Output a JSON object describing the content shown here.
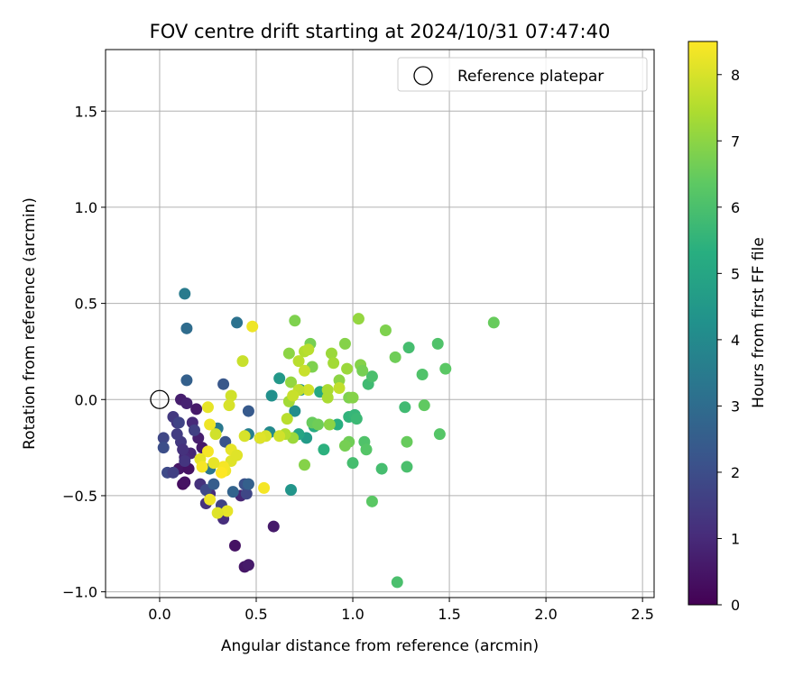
{
  "chart_data": {
    "type": "scatter",
    "title": "FOV centre drift starting at 2024/10/31 07:47:40",
    "xlabel": "Angular distance from reference (arcmin)",
    "ylabel": "Rotation from reference (arcmin)",
    "xlim": [
      -0.28,
      2.56
    ],
    "ylim": [
      -1.03,
      1.82
    ],
    "xticks": [
      0.0,
      0.5,
      1.0,
      1.5,
      2.0,
      2.5
    ],
    "xtick_labels": [
      "0.0",
      "0.5",
      "1.0",
      "1.5",
      "2.0",
      "2.5"
    ],
    "yticks": [
      -1.0,
      -0.5,
      0.0,
      0.5,
      1.0,
      1.5
    ],
    "ytick_labels": [
      "−1.0",
      "−0.5",
      "0.0",
      "0.5",
      "1.0",
      "1.5"
    ],
    "grid": true,
    "legend": {
      "position": "top-right",
      "label": "Reference platepar"
    },
    "reference_point": {
      "x": 0.0,
      "y": 0.0
    },
    "colorbar": {
      "label": "Hours from first FF file",
      "range": [
        0,
        8.5
      ],
      "ticks": [
        0,
        1,
        2,
        3,
        4,
        5,
        6,
        7,
        8
      ],
      "tick_labels": [
        "0",
        "1",
        "2",
        "3",
        "4",
        "5",
        "6",
        "7",
        "8"
      ],
      "colormap": "viridis"
    },
    "points": [
      [
        0.12,
        -0.44,
        0.3
      ],
      [
        0.13,
        -0.43,
        0.4
      ],
      [
        0.1,
        -0.36,
        0.5
      ],
      [
        0.15,
        -0.36,
        0.4
      ],
      [
        0.19,
        -0.05,
        0.6
      ],
      [
        0.11,
        0.0,
        0.7
      ],
      [
        0.14,
        -0.02,
        0.8
      ],
      [
        0.17,
        -0.12,
        1.0
      ],
      [
        0.2,
        -0.2,
        0.7
      ],
      [
        0.16,
        -0.28,
        0.9
      ],
      [
        0.22,
        -0.25,
        0.6
      ],
      [
        0.13,
        -0.3,
        1.0
      ],
      [
        0.33,
        -0.6,
        0.5
      ],
      [
        0.39,
        -0.76,
        0.4
      ],
      [
        0.44,
        -0.87,
        0.5
      ],
      [
        0.46,
        -0.86,
        0.6
      ],
      [
        0.59,
        -0.66,
        0.6
      ],
      [
        0.42,
        -0.5,
        0.9
      ],
      [
        0.26,
        -0.49,
        1.1
      ],
      [
        0.24,
        -0.54,
        1.2
      ],
      [
        0.33,
        -0.62,
        1.1
      ],
      [
        0.21,
        -0.44,
        1.2
      ],
      [
        0.09,
        -0.12,
        1.3
      ],
      [
        0.11,
        -0.22,
        1.4
      ],
      [
        0.13,
        -0.32,
        1.3
      ],
      [
        0.07,
        -0.09,
        1.4
      ],
      [
        0.09,
        -0.18,
        1.5
      ],
      [
        0.12,
        -0.26,
        1.2
      ],
      [
        0.18,
        -0.16,
        1.6
      ],
      [
        0.02,
        -0.2,
        1.8
      ],
      [
        0.04,
        -0.38,
        1.9
      ],
      [
        0.02,
        -0.25,
        2.0
      ],
      [
        0.1,
        -0.12,
        1.7
      ],
      [
        0.07,
        -0.38,
        1.6
      ],
      [
        0.24,
        -0.47,
        1.9
      ],
      [
        0.45,
        -0.49,
        1.8
      ],
      [
        0.32,
        -0.55,
        1.7
      ],
      [
        0.44,
        -0.44,
        2.1
      ],
      [
        0.34,
        -0.22,
        2.2
      ],
      [
        0.33,
        0.08,
        2.3
      ],
      [
        0.46,
        -0.06,
        2.4
      ],
      [
        0.28,
        -0.44,
        2.5
      ],
      [
        0.46,
        -0.44,
        2.6
      ],
      [
        0.38,
        -0.48,
        2.7
      ],
      [
        0.14,
        0.1,
        2.6
      ],
      [
        0.4,
        0.4,
        3.2
      ],
      [
        0.14,
        0.37,
        3.0
      ],
      [
        0.13,
        0.55,
        3.5
      ],
      [
        0.26,
        -0.36,
        3.3
      ],
      [
        0.3,
        -0.15,
        3.4
      ],
      [
        0.46,
        -0.18,
        3.6
      ],
      [
        0.52,
        -0.2,
        3.8
      ],
      [
        0.57,
        -0.17,
        4.0
      ],
      [
        0.58,
        0.02,
        4.2
      ],
      [
        0.62,
        0.11,
        4.5
      ],
      [
        0.68,
        -0.47,
        4.4
      ],
      [
        0.7,
        -0.06,
        4.1
      ],
      [
        0.73,
        0.05,
        4.3
      ],
      [
        0.76,
        -0.2,
        4.6
      ],
      [
        0.72,
        -0.18,
        5.0
      ],
      [
        0.8,
        -0.14,
        5.2
      ],
      [
        0.85,
        -0.26,
        5.4
      ],
      [
        0.83,
        0.04,
        5.1
      ],
      [
        0.92,
        -0.13,
        5.3
      ],
      [
        0.98,
        -0.09,
        5.5
      ],
      [
        1.01,
        -0.08,
        5.6
      ],
      [
        1.02,
        -0.1,
        5.7
      ],
      [
        1.08,
        0.08,
        5.8
      ],
      [
        1.1,
        0.12,
        6.0
      ],
      [
        1.0,
        -0.33,
        5.9
      ],
      [
        1.06,
        -0.22,
        6.1
      ],
      [
        1.07,
        -0.26,
        6.2
      ],
      [
        1.15,
        -0.36,
        5.9
      ],
      [
        1.1,
        -0.53,
        6.3
      ],
      [
        1.23,
        -0.95,
        6.0
      ],
      [
        1.27,
        -0.04,
        5.8
      ],
      [
        1.29,
        0.27,
        5.9
      ],
      [
        1.36,
        0.13,
        6.1
      ],
      [
        1.37,
        -0.03,
        6.4
      ],
      [
        1.28,
        -0.22,
        6.5
      ],
      [
        1.28,
        -0.35,
        6.0
      ],
      [
        1.45,
        -0.18,
        6.2
      ],
      [
        1.44,
        0.29,
        6.1
      ],
      [
        1.48,
        0.16,
        6.3
      ],
      [
        1.73,
        0.4,
        6.5
      ],
      [
        1.22,
        0.22,
        6.6
      ],
      [
        1.17,
        0.36,
        6.8
      ],
      [
        1.03,
        0.42,
        7.1
      ],
      [
        1.04,
        0.18,
        6.9
      ],
      [
        1.05,
        0.15,
        6.7
      ],
      [
        0.98,
        0.01,
        6.8
      ],
      [
        1.0,
        0.01,
        6.9
      ],
      [
        0.98,
        -0.22,
        6.6
      ],
      [
        0.96,
        -0.24,
        6.7
      ],
      [
        0.93,
        0.1,
        7.0
      ],
      [
        0.89,
        0.24,
        7.2
      ],
      [
        0.96,
        0.29,
        6.9
      ],
      [
        0.9,
        0.19,
        7.3
      ],
      [
        0.87,
        0.05,
        7.4
      ],
      [
        0.79,
        0.17,
        6.8
      ],
      [
        0.78,
        0.29,
        6.7
      ],
      [
        0.75,
        0.25,
        7.5
      ],
      [
        0.72,
        0.2,
        7.6
      ],
      [
        0.7,
        0.41,
        6.8
      ],
      [
        0.67,
        0.24,
        7.0
      ],
      [
        0.68,
        0.09,
        7.1
      ],
      [
        0.67,
        -0.01,
        7.3
      ],
      [
        0.69,
        -0.2,
        7.2
      ],
      [
        0.65,
        -0.18,
        7.5
      ],
      [
        0.66,
        -0.1,
        7.6
      ],
      [
        0.75,
        -0.34,
        6.9
      ],
      [
        0.79,
        -0.12,
        6.5
      ],
      [
        0.82,
        -0.13,
        6.6
      ],
      [
        0.88,
        -0.13,
        7.0
      ],
      [
        0.87,
        0.01,
        7.4
      ],
      [
        0.93,
        0.06,
        7.7
      ],
      [
        0.97,
        0.16,
        7.2
      ],
      [
        0.75,
        0.15,
        7.8
      ],
      [
        0.77,
        0.26,
        7.6
      ],
      [
        0.77,
        0.05,
        7.9
      ],
      [
        0.72,
        0.05,
        7.7
      ],
      [
        0.69,
        0.02,
        7.8
      ],
      [
        0.62,
        -0.19,
        7.9
      ],
      [
        0.55,
        -0.19,
        8.0
      ],
      [
        0.52,
        -0.2,
        8.1
      ],
      [
        0.48,
        0.38,
        8.3
      ],
      [
        0.43,
        0.2,
        7.8
      ],
      [
        0.44,
        -0.19,
        8.0
      ],
      [
        0.37,
        -0.32,
        8.1
      ],
      [
        0.37,
        -0.26,
        8.2
      ],
      [
        0.34,
        -0.37,
        8.3
      ],
      [
        0.33,
        -0.35,
        8.4
      ],
      [
        0.35,
        -0.58,
        8.2
      ],
      [
        0.3,
        -0.59,
        8.1
      ],
      [
        0.26,
        -0.52,
        8.3
      ],
      [
        0.28,
        -0.33,
        8.2
      ],
      [
        0.25,
        -0.27,
        8.4
      ],
      [
        0.26,
        -0.13,
        8.3
      ],
      [
        0.29,
        -0.18,
        7.9
      ],
      [
        0.25,
        -0.04,
        8.2
      ],
      [
        0.37,
        0.02,
        7.9
      ],
      [
        0.36,
        -0.03,
        8.0
      ],
      [
        0.54,
        -0.46,
        8.4
      ],
      [
        0.4,
        -0.29,
        8.1
      ],
      [
        0.32,
        -0.38,
        8.5
      ],
      [
        0.21,
        -0.31,
        8.2
      ],
      [
        0.22,
        -0.35,
        8.4
      ]
    ]
  }
}
